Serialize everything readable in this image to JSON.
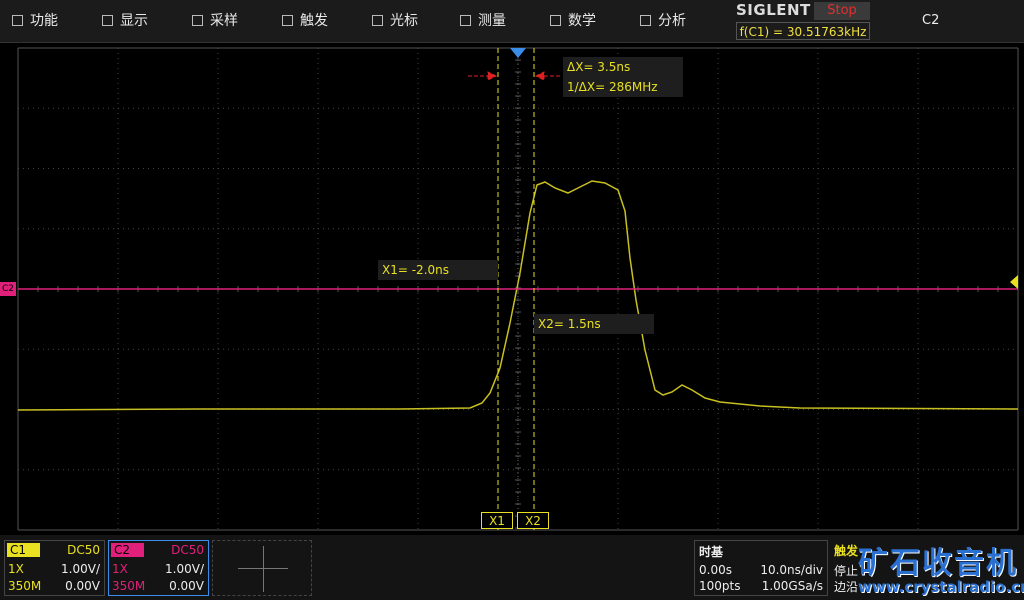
{
  "menu": {
    "items": [
      "功能",
      "显示",
      "采样",
      "触发",
      "光标",
      "测量",
      "数学",
      "分析"
    ]
  },
  "brand": "SIGLENT",
  "status": "Stop",
  "frequency": "f(C1) = 30.51763kHz",
  "active_channel": "C2",
  "cursors": {
    "delta_x": "ΔX= 3.5ns",
    "inv_delta_x": "1/ΔX= 286MHz",
    "x1": "X1= -2.0ns",
    "x2": "X2= 1.5ns",
    "x1_tag": "X1",
    "x2_tag": "X2"
  },
  "level_marker": "C2",
  "channels": [
    {
      "name": "C1",
      "coupling": "DC50",
      "probe": "1X",
      "scale": "1.00V/",
      "bandwidth": "350M",
      "offset": "0.00V"
    },
    {
      "name": "C2",
      "coupling": "DC50",
      "probe": "1X",
      "scale": "1.00V/",
      "bandwidth": "350M",
      "offset": "0.00V"
    }
  ],
  "timebase": {
    "title": "时基",
    "delay": "0.00s",
    "scale": "10.0ns/div",
    "points": "100pts",
    "rate": "1.00GSa/s"
  },
  "trigger": {
    "title": "触发",
    "state": "停止",
    "type": "边沿"
  },
  "watermark": {
    "title": "矿石收音机",
    "url": "www.crystalradio.cn"
  }
}
